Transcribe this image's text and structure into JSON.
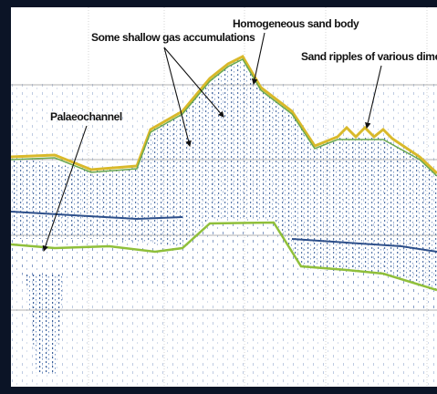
{
  "annotations": {
    "palaeochannel": "Palaeochannel",
    "gas": "Some shallow gas accumulations",
    "sand_body": "Homogeneous sand body",
    "ripples": "Sand ripples of various dimensions"
  }
}
